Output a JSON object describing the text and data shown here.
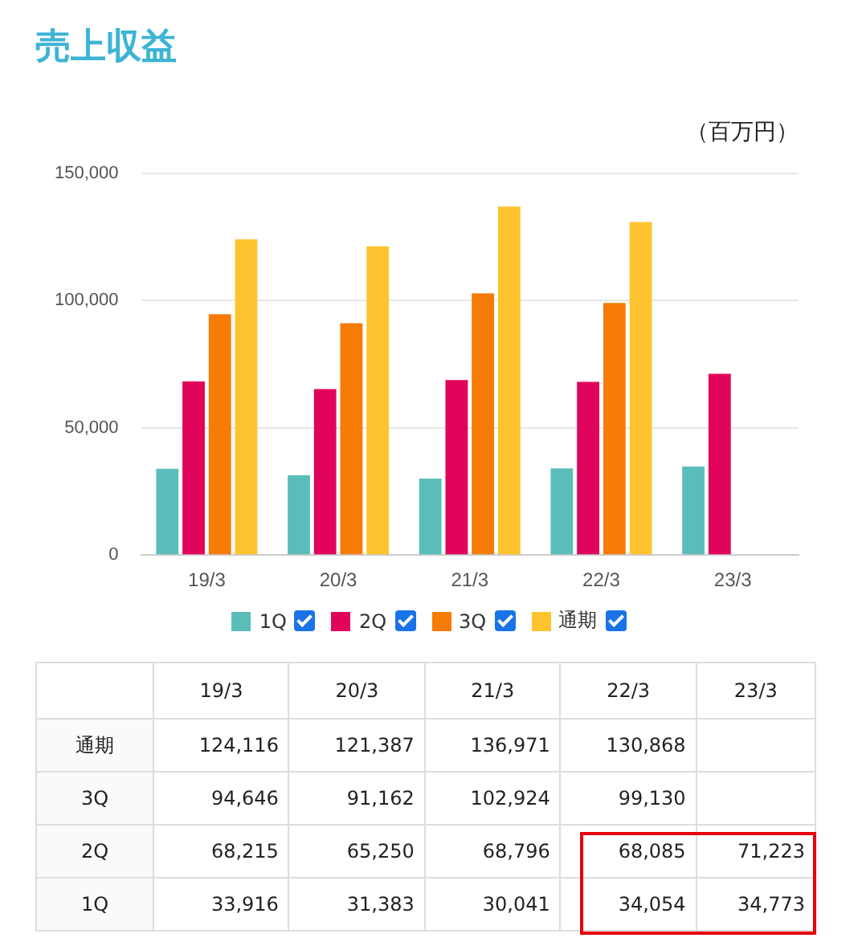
{
  "chart_data": {
    "type": "bar",
    "title": "売上収益",
    "ylabel": "（百万円）",
    "categories": [
      "19/3",
      "20/3",
      "21/3",
      "22/3",
      "23/3"
    ],
    "series": [
      {
        "name": "1Q",
        "color": "#5bbdb9",
        "values": [
          33916,
          31383,
          30041,
          34054,
          34773
        ],
        "value_labels": [
          "33,916",
          "31,383",
          "30,041",
          "34,054",
          "34,773"
        ]
      },
      {
        "name": "2Q",
        "color": "#e0055b",
        "values": [
          68215,
          65250,
          68796,
          68085,
          71223
        ],
        "value_labels": [
          "68,215",
          "65,250",
          "68,796",
          "68,085",
          "71,223"
        ]
      },
      {
        "name": "3Q",
        "color": "#f67b07",
        "values": [
          94646,
          91162,
          102924,
          99130,
          null
        ],
        "value_labels": [
          "94,646",
          "91,162",
          "102,924",
          "99,130",
          null
        ]
      },
      {
        "name": "通期",
        "color": "#fdc42f",
        "values": [
          124116,
          121387,
          136971,
          130868,
          null
        ],
        "value_labels": [
          "124,116",
          "121,387",
          "136,971",
          "130,868",
          null
        ]
      }
    ],
    "ylim": [
      0,
      150000
    ],
    "yticks": [
      0,
      {
        "value": 50000,
        "label": "50,000"
      },
      {
        "value": 100000,
        "label": "100,000"
      },
      {
        "value": 150000,
        "label": "150,000"
      }
    ],
    "grid": "y",
    "legend": "bottom"
  }
}
